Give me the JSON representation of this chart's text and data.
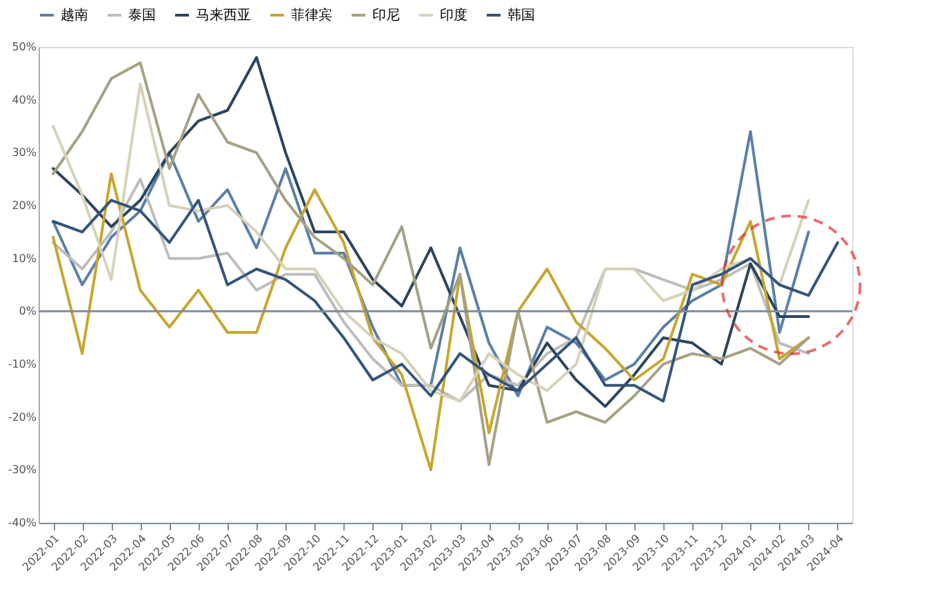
{
  "chart_data": {
    "type": "line",
    "categories": [
      "2022-01",
      "2022-02",
      "2022-03",
      "2022-04",
      "2022-05",
      "2022-06",
      "2022-07",
      "2022-08",
      "2022-09",
      "2022-10",
      "2022-11",
      "2022-12",
      "2023-01",
      "2023-02",
      "2023-03",
      "2023-04",
      "2023-05",
      "2023-06",
      "2023-07",
      "2023-08",
      "2023-09",
      "2023-10",
      "2023-11",
      "2023-12",
      "2024-01",
      "2024-02",
      "2024-03",
      "2024-04"
    ],
    "series": [
      {
        "name": "越南",
        "color": "#5a7fa8",
        "values": [
          17,
          5,
          14,
          19,
          30,
          17,
          23,
          12,
          27,
          11,
          11,
          -3,
          -14,
          -14,
          12,
          -6,
          -16,
          -3,
          -6,
          -13,
          -10,
          -3,
          2,
          5,
          34,
          -4,
          15,
          null
        ]
      },
      {
        "name": "泰国",
        "color": "#bdbdbd",
        "values": [
          13,
          8,
          15,
          25,
          10,
          10,
          11,
          4,
          7,
          7,
          -2,
          -9,
          -14,
          -14,
          -17,
          -12,
          -14,
          -8,
          -5,
          8,
          8,
          6,
          4,
          6,
          9,
          -6,
          -8,
          null
        ]
      },
      {
        "name": "马来西亚",
        "color": "#2b4560",
        "values": [
          27,
          22,
          16,
          21,
          30,
          36,
          38,
          48,
          30,
          15,
          15,
          6,
          1,
          12,
          -1,
          -14,
          -15,
          -6,
          -13,
          -18,
          -12,
          -5,
          -6,
          -10,
          9,
          -1,
          -1,
          null
        ]
      },
      {
        "name": "菲律宾",
        "color": "#c8a52e",
        "values": [
          14,
          -8,
          26,
          4,
          -3,
          4,
          -4,
          -4,
          12,
          23,
          13,
          -5,
          -12,
          -30,
          7,
          -23,
          0,
          8,
          -2,
          -7,
          -13,
          -9,
          7,
          5,
          17,
          -9,
          -5,
          null
        ]
      },
      {
        "name": "印尼",
        "color": "#a6a183",
        "values": [
          26,
          34,
          44,
          47,
          27,
          41,
          32,
          30,
          21,
          14,
          10,
          5,
          16,
          -7,
          7,
          -29,
          0,
          -21,
          -19,
          -21,
          -16,
          -10,
          -8,
          -9,
          -7,
          -10,
          -5,
          null
        ]
      },
      {
        "name": "印度",
        "color": "#d6d2b8",
        "values": [
          35,
          22,
          6,
          43,
          20,
          19,
          20,
          15,
          8,
          8,
          0,
          -5,
          -8,
          -15,
          -17,
          -8,
          -12,
          -15,
          -10,
          8,
          8,
          2,
          4,
          8,
          10,
          5,
          21,
          null
        ]
      },
      {
        "name": "韩国",
        "color": "#34557a",
        "values": [
          17,
          15,
          21,
          19,
          13,
          21,
          5,
          8,
          6,
          2,
          -5,
          -13,
          -10,
          -16,
          -8,
          -12,
          -15,
          -10,
          -5,
          -14,
          -14,
          -17,
          5,
          7,
          10,
          5,
          3,
          13
        ]
      }
    ],
    "ylim": [
      -40,
      50
    ],
    "yticks": [
      {
        "value": -40,
        "label": "-40%"
      },
      {
        "value": -30,
        "label": "-30%"
      },
      {
        "value": -20,
        "label": "-20%"
      },
      {
        "value": -10,
        "label": "-10%"
      },
      {
        "value": 0,
        "label": "0%"
      },
      {
        "value": 10,
        "label": "10%"
      },
      {
        "value": 20,
        "label": "20%"
      },
      {
        "value": 30,
        "label": "30%"
      },
      {
        "value": 40,
        "label": "40%"
      },
      {
        "value": 50,
        "label": "50%"
      }
    ],
    "ref_lines": [
      {
        "axis": "y",
        "value": 0,
        "color": "#7f8c9c"
      }
    ],
    "grid": false,
    "legend": "top",
    "marker": "none",
    "line_style": "solid"
  }
}
